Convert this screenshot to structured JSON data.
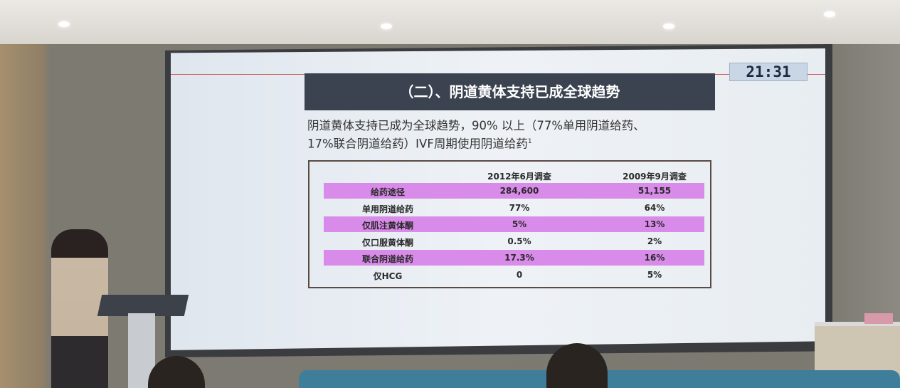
{
  "slide": {
    "timer": "21:31",
    "title": "（二）、阴道黄体支持已成全球趋势",
    "lead_line1": "阴道黄体支持已成为全球趋势，90% 以上（77%单用阴道给药、",
    "lead_line2": "17%联合阴道给药）IVF周期使用阴道给药",
    "lead_sup": "1",
    "table": {
      "headers": [
        "",
        "2012年6月调查",
        "2009年9月调查"
      ],
      "rows": [
        {
          "label": "给药途径",
          "v2012": "284,600",
          "v2009": "51,155",
          "highlight": true
        },
        {
          "label": "单用阴道给药",
          "v2012": "77%",
          "v2009": "64%",
          "highlight": false
        },
        {
          "label": "仅肌注黄体酮",
          "v2012": "5%",
          "v2009": "13%",
          "highlight": true
        },
        {
          "label": "仅口服黄体酮",
          "v2012": "0.5%",
          "v2009": "2%",
          "highlight": false
        },
        {
          "label": "联合阴道给药",
          "v2012": "17.3%",
          "v2009": "16%",
          "highlight": true
        },
        {
          "label": "仅HCG",
          "v2012": "0",
          "v2009": "5%",
          "highlight": false
        }
      ]
    },
    "colors": {
      "highlight_row": "#d98bea",
      "title_bar": "#3b4350"
    }
  }
}
